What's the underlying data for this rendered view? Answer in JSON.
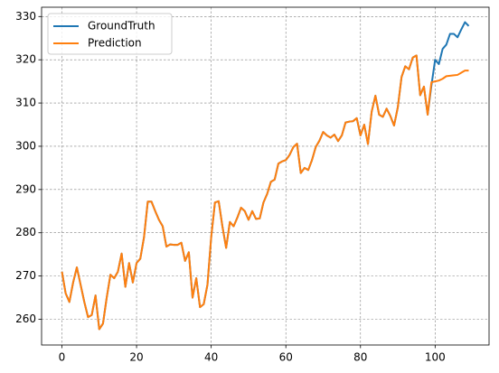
{
  "chart_data": {
    "type": "line",
    "x": [
      0,
      1,
      2,
      3,
      4,
      5,
      6,
      7,
      8,
      9,
      10,
      11,
      12,
      13,
      14,
      15,
      16,
      17,
      18,
      19,
      20,
      21,
      22,
      23,
      24,
      25,
      26,
      27,
      28,
      29,
      30,
      31,
      32,
      33,
      34,
      35,
      36,
      37,
      38,
      39,
      40,
      41,
      42,
      43,
      44,
      45,
      46,
      47,
      48,
      49,
      50,
      51,
      52,
      53,
      54,
      55,
      56,
      57,
      58,
      59,
      60,
      61,
      62,
      63,
      64,
      65,
      66,
      67,
      68,
      69,
      70,
      71,
      72,
      73,
      74,
      75,
      76,
      77,
      78,
      79,
      80,
      81,
      82,
      83,
      84,
      85,
      86,
      87,
      88,
      89,
      90,
      91,
      92,
      93,
      94,
      95,
      96,
      97,
      98,
      99,
      100,
      101,
      102,
      103,
      104,
      105,
      106,
      107,
      108,
      109
    ],
    "series": [
      {
        "name": "GroundTruth",
        "color": "#1f77b4",
        "values": [
          271,
          266,
          264,
          268.5,
          272,
          268,
          264,
          260.5,
          261,
          265.5,
          257.7,
          259,
          265,
          270.3,
          269.5,
          271,
          275.2,
          267.5,
          273,
          268.5,
          273,
          274,
          279,
          287.2,
          287.2,
          285,
          283,
          281.5,
          276.8,
          277.3,
          277.2,
          277.2,
          277.7,
          273.5,
          275.5,
          265,
          269.5,
          262.8,
          263.5,
          268,
          279,
          287,
          287.3,
          281.5,
          276.5,
          282.5,
          281.5,
          283.5,
          285.8,
          285,
          283,
          285,
          283.2,
          283.3,
          287,
          289,
          291.8,
          292.3,
          296,
          296.5,
          296.8,
          298,
          299.8,
          300.6,
          293.8,
          295,
          294.5,
          296.8,
          299.8,
          301.3,
          303.3,
          302.5,
          302,
          302.7,
          301.2,
          302.5,
          305.5,
          305.7,
          305.8,
          306.5,
          302.5,
          305,
          300.5,
          308,
          311.7,
          307.3,
          306.8,
          308.7,
          307,
          304.8,
          309,
          316,
          318.5,
          317.8,
          320.5,
          321,
          311.8,
          313.8,
          307.3,
          314,
          320,
          319,
          322.5,
          323.5,
          326,
          326,
          325.2,
          327,
          328.7,
          327.8
        ]
      },
      {
        "name": "Prediction",
        "color": "#ff7f0e",
        "values": [
          271,
          266,
          264,
          268.5,
          272,
          268,
          264,
          260.5,
          261,
          265.5,
          257.7,
          259,
          265,
          270.3,
          269.5,
          271,
          275.2,
          267.5,
          273,
          268.5,
          273,
          274,
          279,
          287.2,
          287.2,
          285,
          283,
          281.5,
          276.8,
          277.3,
          277.2,
          277.2,
          277.7,
          273.5,
          275.5,
          265,
          269.5,
          262.8,
          263.5,
          268,
          279,
          287,
          287.3,
          281.5,
          276.5,
          282.5,
          281.5,
          283.5,
          285.8,
          285,
          283,
          285,
          283.2,
          283.3,
          287,
          289,
          291.8,
          292.3,
          296,
          296.5,
          296.8,
          298,
          299.8,
          300.6,
          293.8,
          295,
          294.5,
          296.8,
          299.8,
          301.3,
          303.3,
          302.5,
          302,
          302.7,
          301.2,
          302.5,
          305.5,
          305.7,
          305.8,
          306.5,
          302.5,
          305,
          300.5,
          308,
          311.7,
          307.3,
          306.8,
          308.7,
          307,
          304.8,
          309,
          316,
          318.5,
          317.8,
          320.5,
          321,
          311.8,
          313.8,
          307.3,
          314.8,
          315,
          315.2,
          315.6,
          316.2,
          316.3,
          316.4,
          316.5,
          317,
          317.5,
          317.5
        ]
      }
    ],
    "xlim": [
      -5.45,
      114.45
    ],
    "xticks": [
      0,
      20,
      40,
      60,
      80,
      100
    ],
    "ylim": [
      254.05,
      332.15
    ],
    "yticks": [
      260,
      270,
      280,
      290,
      300,
      310,
      320,
      330
    ],
    "grid": true,
    "legend": "upper left"
  }
}
